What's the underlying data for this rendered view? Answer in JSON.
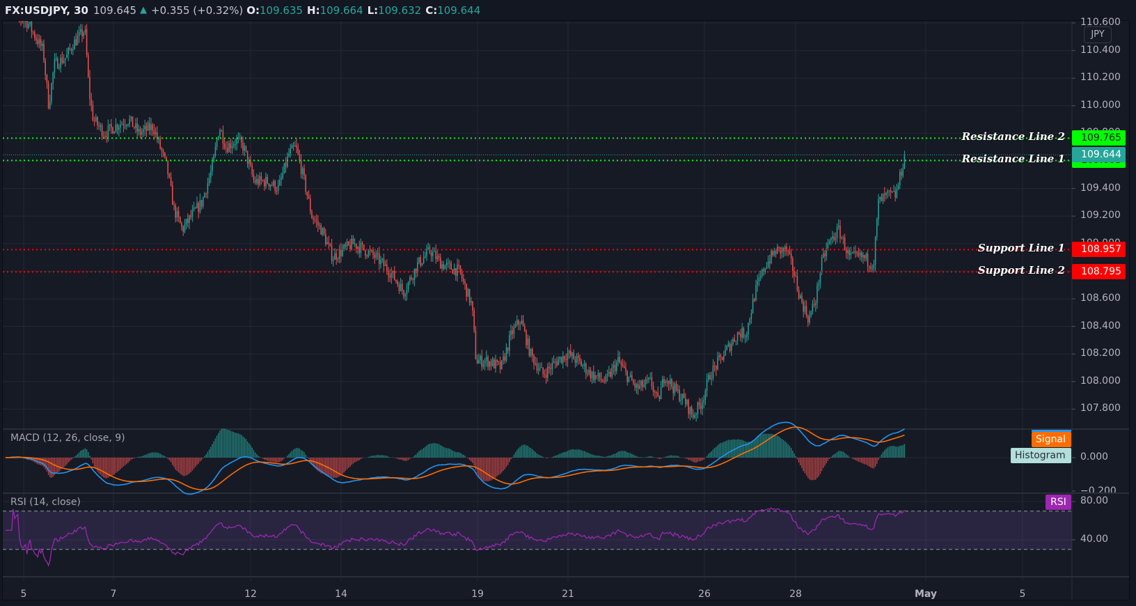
{
  "header": {
    "symbol": "FX:USDJPY, 30",
    "last": "109.645",
    "change": "+0.355 (+0.32%)",
    "o_label": "O:",
    "o": "109.635",
    "h_label": "H:",
    "h": "109.664",
    "l_label": "L:",
    "l": "109.632",
    "c_label": "C:",
    "c": "109.644"
  },
  "price_axis": {
    "currency": "JPY",
    "ticks": [
      "110.600",
      "110.400",
      "110.200",
      "110.000",
      "109.800",
      "109.600",
      "109.400",
      "109.200",
      "109.000",
      "108.800",
      "108.600",
      "108.400",
      "108.200",
      "108.000",
      "107.800"
    ]
  },
  "levels": [
    {
      "name": "Resistance Line 2",
      "value": "109.765",
      "price": 109.765,
      "color": "#00ff00",
      "text_color": "#0a1a0a"
    },
    {
      "name": "Resistance Line 1",
      "value": "109.603",
      "price": 109.603,
      "color": "#00ff00",
      "text_color": "#0a1a0a"
    },
    {
      "name": "Support Line 1",
      "value": "108.957",
      "price": 108.957,
      "color": "#ff0000",
      "text_color": "#ffffff"
    },
    {
      "name": "Support Line 2",
      "value": "108.795",
      "price": 108.795,
      "color": "#ff0000",
      "text_color": "#ffffff"
    }
  ],
  "current_price": {
    "value": "109.644",
    "price": 109.644,
    "color": "#26a69a"
  },
  "macd": {
    "title": "MACD (12, 26, close, 9)",
    "signal_label": "Signal",
    "histogram_label": "Histogram",
    "ticks": [
      "0.000",
      "−0.200"
    ],
    "macd_color": "#2196f3",
    "signal_color": "#ff6d00",
    "signal_badge_color": "#ff6d00",
    "histogram_badge_color": "#b2dfdb"
  },
  "rsi": {
    "title": "RSI (14, close)",
    "badge": "RSI",
    "ticks": [
      "80.00",
      "40.00"
    ],
    "color": "#9c27b0",
    "upper": 70,
    "lower": 30
  },
  "time_axis": {
    "labels": [
      "5",
      "7",
      "12",
      "14",
      "19",
      "21",
      "26",
      "28",
      "May",
      "5"
    ]
  },
  "colors": {
    "up": "#26a69a",
    "down": "#ef5350",
    "background": "#161a25",
    "grid": "#242833"
  },
  "chart_data": {
    "type": "candlestick",
    "title": "FX:USDJPY, 30",
    "timeframe": "30 min",
    "xlabel": "",
    "ylabel": "JPY",
    "x_ticks": [
      "5",
      "7",
      "12",
      "14",
      "19",
      "21",
      "26",
      "28",
      "May",
      "5"
    ],
    "ylim": [
      107.7,
      110.65
    ],
    "series": [
      {
        "name": "USDJPY close (approx.)",
        "x": [
          "Apr 5",
          "Apr 6",
          "Apr 7",
          "Apr 8",
          "Apr 9",
          "Apr 12",
          "Apr 13",
          "Apr 14",
          "Apr 15",
          "Apr 16",
          "Apr 19",
          "Apr 20",
          "Apr 21",
          "Apr 22",
          "Apr 23",
          "Apr 26",
          "Apr 27",
          "Apr 28",
          "Apr 29",
          "Apr 30",
          "May 3"
        ],
        "values": [
          110.62,
          110.55,
          109.9,
          109.75,
          109.3,
          109.8,
          109.65,
          108.85,
          108.9,
          108.8,
          108.12,
          108.4,
          108.1,
          108.0,
          107.95,
          107.75,
          108.3,
          108.9,
          108.55,
          108.9,
          109.64
        ]
      }
    ],
    "levels": [
      {
        "name": "Resistance Line 2",
        "value": 109.765
      },
      {
        "name": "Resistance Line 1",
        "value": 109.603
      },
      {
        "name": "Support Line 1",
        "value": 108.957
      },
      {
        "name": "Support Line 2",
        "value": 108.795
      }
    ],
    "last_price": 109.644,
    "ohlc": {
      "open": 109.635,
      "high": 109.664,
      "low": 109.632,
      "close": 109.644
    },
    "change": 0.355,
    "change_pct": 0.32,
    "macd": {
      "params": [
        12,
        26,
        "close",
        9
      ],
      "ylim": [
        -0.2,
        0.15
      ]
    },
    "rsi": {
      "params": [
        14,
        "close"
      ],
      "band": [
        30,
        70
      ],
      "last": 79
    }
  },
  "path_keypoints": [
    [
      8,
      110.7
    ],
    [
      40,
      110.6
    ],
    [
      62,
      110.4
    ],
    [
      70,
      110.0
    ],
    [
      78,
      110.3
    ],
    [
      95,
      110.35
    ],
    [
      105,
      110.45
    ],
    [
      122,
      110.55
    ],
    [
      128,
      110.1
    ],
    [
      134,
      109.9
    ],
    [
      150,
      109.8
    ],
    [
      165,
      109.85
    ],
    [
      185,
      109.9
    ],
    [
      200,
      109.8
    ],
    [
      220,
      109.85
    ],
    [
      240,
      109.55
    ],
    [
      250,
      109.25
    ],
    [
      262,
      109.1
    ],
    [
      275,
      109.2
    ],
    [
      290,
      109.3
    ],
    [
      305,
      109.55
    ],
    [
      315,
      109.85
    ],
    [
      325,
      109.7
    ],
    [
      340,
      109.75
    ],
    [
      350,
      109.7
    ],
    [
      365,
      109.45
    ],
    [
      385,
      109.45
    ],
    [
      400,
      109.4
    ],
    [
      415,
      109.65
    ],
    [
      425,
      109.7
    ],
    [
      435,
      109.5
    ],
    [
      448,
      109.2
    ],
    [
      462,
      109.1
    ],
    [
      478,
      108.9
    ],
    [
      492,
      108.95
    ],
    [
      508,
      109.0
    ],
    [
      525,
      108.95
    ],
    [
      540,
      108.9
    ],
    [
      560,
      108.8
    ],
    [
      580,
      108.65
    ],
    [
      600,
      108.85
    ],
    [
      618,
      108.95
    ],
    [
      635,
      108.85
    ],
    [
      660,
      108.8
    ],
    [
      678,
      108.55
    ],
    [
      684,
      108.15
    ],
    [
      700,
      108.15
    ],
    [
      720,
      108.1
    ],
    [
      735,
      108.35
    ],
    [
      748,
      108.45
    ],
    [
      762,
      108.2
    ],
    [
      780,
      108.05
    ],
    [
      800,
      108.15
    ],
    [
      815,
      108.2
    ],
    [
      830,
      108.15
    ],
    [
      850,
      108.05
    ],
    [
      870,
      108.0
    ],
    [
      888,
      108.15
    ],
    [
      900,
      108.05
    ],
    [
      915,
      107.95
    ],
    [
      935,
      108.0
    ],
    [
      945,
      107.85
    ],
    [
      955,
      108.05
    ],
    [
      968,
      107.95
    ],
    [
      985,
      107.85
    ],
    [
      995,
      107.75
    ],
    [
      1008,
      107.85
    ],
    [
      1020,
      108.05
    ],
    [
      1040,
      108.2
    ],
    [
      1060,
      108.35
    ],
    [
      1072,
      108.35
    ],
    [
      1085,
      108.65
    ],
    [
      1100,
      108.85
    ],
    [
      1115,
      108.95
    ],
    [
      1130,
      108.95
    ],
    [
      1140,
      108.8
    ],
    [
      1150,
      108.6
    ],
    [
      1162,
      108.45
    ],
    [
      1172,
      108.6
    ],
    [
      1180,
      108.85
    ],
    [
      1190,
      109.0
    ],
    [
      1205,
      109.1
    ],
    [
      1220,
      108.9
    ],
    [
      1240,
      108.9
    ],
    [
      1255,
      108.85
    ],
    [
      1262,
      109.3
    ],
    [
      1275,
      109.35
    ],
    [
      1287,
      109.35
    ],
    [
      1300,
      109.64
    ]
  ]
}
